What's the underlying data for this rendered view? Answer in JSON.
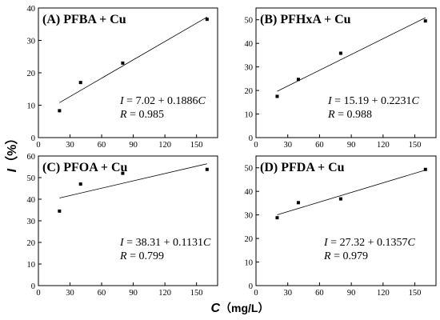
{
  "figure": {
    "ylabel_symbol": "I",
    "ylabel_unit": "（%）",
    "xlabel_symbol": "C",
    "xlabel_unit": "（mg/L）"
  },
  "chart_data": [
    {
      "type": "scatter",
      "title": "(A) PFBA + Cu",
      "x": [
        20,
        40,
        80,
        160
      ],
      "y": [
        8.3,
        17.0,
        23.0,
        36.5
      ],
      "fit": {
        "intercept": 7.02,
        "slope": 0.1886
      },
      "equation_lhs": "I",
      "equation_rhs": " = 7.02 + 0.1886",
      "equation_var": "C",
      "r_label": "R",
      "r_value": " = 0.985",
      "xlim": [
        0,
        170
      ],
      "ylim": [
        0,
        40
      ],
      "xticks": [
        0,
        30,
        60,
        90,
        120,
        150
      ],
      "yticks": [
        0,
        10,
        20,
        30,
        40
      ],
      "xtick_labels": [
        "0",
        "30",
        "60",
        "90",
        "120",
        "150"
      ],
      "ytick_labels": [
        "0",
        "10",
        "20",
        "30",
        "40"
      ]
    },
    {
      "type": "scatter",
      "title": "(B) PFHxA + Cu",
      "x": [
        20,
        40,
        80,
        160
      ],
      "y": [
        17.5,
        24.7,
        35.8,
        49.5
      ],
      "fit": {
        "intercept": 15.19,
        "slope": 0.2231
      },
      "equation_lhs": "I",
      "equation_rhs": " = 15.19 + 0.2231",
      "equation_var": "C",
      "r_label": "R",
      "r_value": " = 0.988",
      "xlim": [
        0,
        170
      ],
      "ylim": [
        0,
        55
      ],
      "xticks": [
        0,
        30,
        60,
        90,
        120,
        150
      ],
      "yticks": [
        0,
        10,
        20,
        30,
        40,
        50
      ],
      "xtick_labels": [
        "0",
        "30",
        "60",
        "90",
        "120",
        "150"
      ],
      "ytick_labels": [
        "0",
        "10",
        "20",
        "30",
        "40",
        "50"
      ]
    },
    {
      "type": "scatter",
      "title": "(C) PFOA + Cu",
      "x": [
        20,
        40,
        80,
        160
      ],
      "y": [
        34.5,
        47.0,
        52.0,
        53.8
      ],
      "fit": {
        "intercept": 38.31,
        "slope": 0.1131
      },
      "equation_lhs": "I",
      "equation_rhs": " = 38.31 + 0.1131",
      "equation_var": "C",
      "r_label": "R",
      "r_value": " = 0.799",
      "xlim": [
        0,
        170
      ],
      "ylim": [
        0,
        60
      ],
      "xticks": [
        0,
        30,
        60,
        90,
        120,
        150
      ],
      "yticks": [
        0,
        10,
        20,
        30,
        40,
        50,
        60
      ],
      "xtick_labels": [
        "0",
        "30",
        "60",
        "90",
        "120",
        "150"
      ],
      "ytick_labels": [
        "0",
        "10",
        "20",
        "30",
        "40",
        "50",
        "60"
      ]
    },
    {
      "type": "scatter",
      "title": "(D) PFDA + Cu",
      "x": [
        20,
        40,
        80,
        160
      ],
      "y": [
        28.8,
        35.2,
        36.8,
        49.3
      ],
      "fit": {
        "intercept": 27.32,
        "slope": 0.1357
      },
      "equation_lhs": "I",
      "equation_rhs": " = 27.32 + 0.1357",
      "equation_var": "C",
      "r_label": "R",
      "r_value": " = 0.979",
      "xlim": [
        0,
        170
      ],
      "ylim": [
        0,
        55
      ],
      "xticks": [
        0,
        30,
        60,
        90,
        120,
        150
      ],
      "yticks": [
        0,
        10,
        20,
        30,
        40,
        50
      ],
      "xtick_labels": [
        "0",
        "30",
        "60",
        "90",
        "120",
        "150"
      ],
      "ytick_labels": [
        "0",
        "10",
        "20",
        "30",
        "40",
        "50"
      ]
    }
  ]
}
